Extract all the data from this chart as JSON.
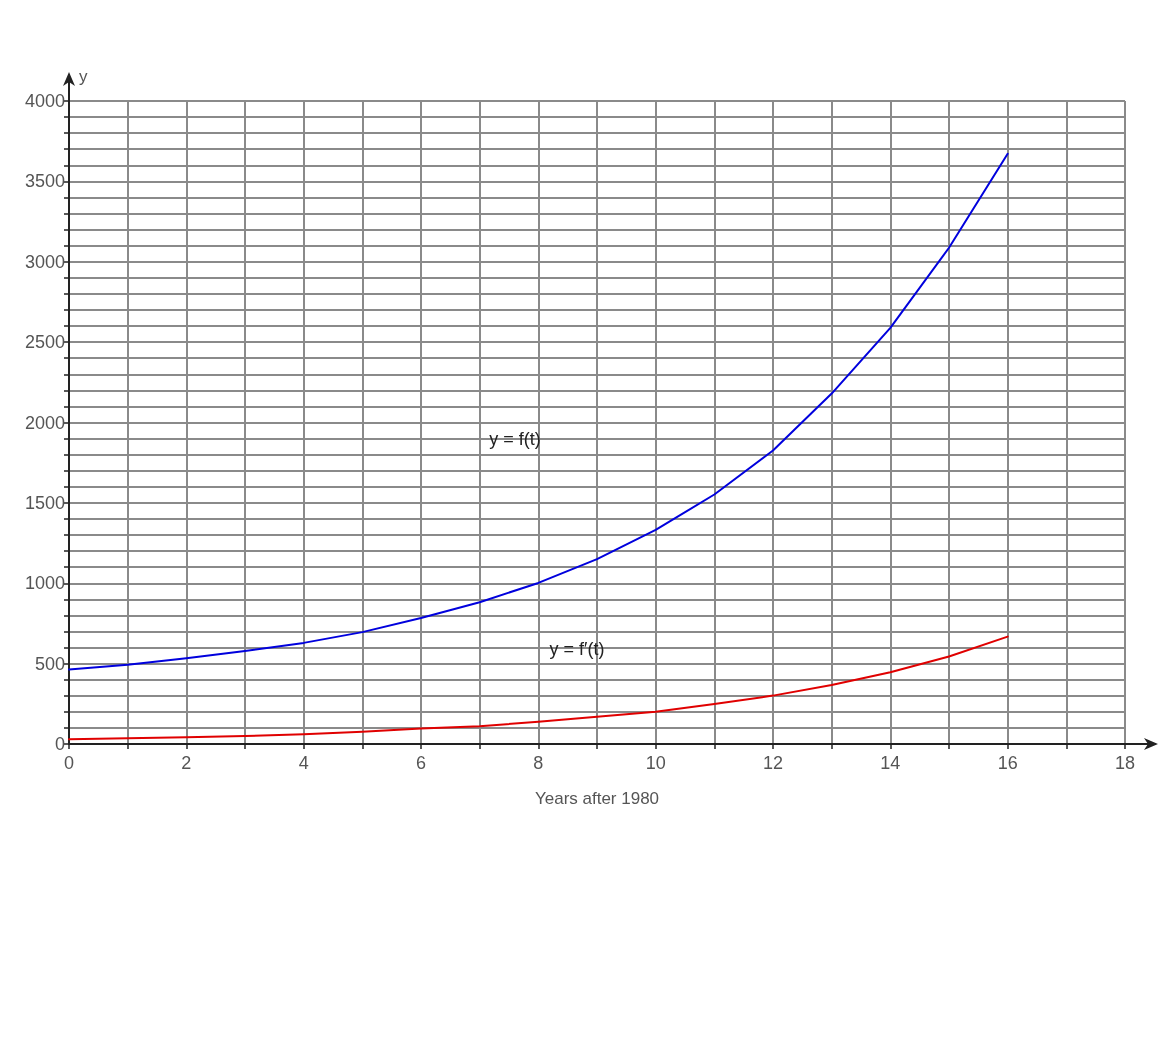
{
  "chart_data": {
    "type": "line",
    "xlabel": "Years after 1980",
    "ylabel": "y",
    "x": [
      0,
      1,
      2,
      3,
      4,
      5,
      6,
      7,
      8,
      9,
      10,
      11,
      12,
      13,
      14,
      15,
      16
    ],
    "series": [
      {
        "color": "#0000dd",
        "values": [
          464,
          493,
          533,
          578,
          629,
          696,
          784,
          882,
          1002,
          1150,
          1332,
          1552,
          1826,
          2180,
          2589,
          3087,
          3672
        ]
      },
      {
        "color": "#e00000",
        "values": [
          29,
          35,
          42,
          50,
          60,
          76,
          96,
          111,
          138,
          170,
          201,
          249,
          301,
          367,
          446,
          544,
          668
        ]
      }
    ],
    "annotations": [
      "y = f(t)",
      "y = f′(t)"
    ],
    "xlim": [
      0,
      18
    ],
    "xticks": [
      0,
      {
        "value": 1,
        "label": null
      },
      2,
      {
        "value": 3,
        "label": null
      },
      4,
      {
        "value": 5,
        "label": null
      },
      6,
      {
        "value": 7,
        "label": null
      },
      8,
      {
        "value": 9,
        "label": null
      },
      10,
      {
        "value": 11,
        "label": null
      },
      12,
      {
        "value": 13,
        "label": null
      },
      14,
      {
        "value": 15,
        "label": null
      },
      16,
      {
        "value": 17,
        "label": null
      },
      18
    ],
    "ylim": [
      0,
      4000
    ],
    "yticks": [
      0,
      {
        "value": 100,
        "label": null
      },
      {
        "value": 200,
        "label": null
      },
      {
        "value": 300,
        "label": null
      },
      {
        "value": 400,
        "label": null
      },
      500,
      {
        "value": 600,
        "label": null
      },
      {
        "value": 700,
        "label": null
      },
      {
        "value": 800,
        "label": null
      },
      {
        "value": 900,
        "label": null
      },
      1000,
      {
        "value": 1100,
        "label": null
      },
      {
        "value": 1200,
        "label": null
      },
      {
        "value": 1300,
        "label": null
      },
      {
        "value": 1400,
        "label": null
      },
      1500,
      {
        "value": 1600,
        "label": null
      },
      {
        "value": 1700,
        "label": null
      },
      {
        "value": 1800,
        "label": null
      },
      {
        "value": 1900,
        "label": null
      },
      2000,
      {
        "value": 2100,
        "label": null
      },
      {
        "value": 2200,
        "label": null
      },
      {
        "value": 2300,
        "label": null
      },
      {
        "value": 2400,
        "label": null
      },
      2500,
      {
        "value": 2600,
        "label": null
      },
      {
        "value": 2700,
        "label": null
      },
      {
        "value": 2800,
        "label": null
      },
      {
        "value": 2900,
        "label": null
      },
      3000,
      {
        "value": 3100,
        "label": null
      },
      {
        "value": 3200,
        "label": null
      },
      {
        "value": 3300,
        "label": null
      },
      {
        "value": 3400,
        "label": null
      },
      3500,
      {
        "value": 3600,
        "label": null
      },
      {
        "value": 3700,
        "label": null
      },
      {
        "value": 3800,
        "label": null
      },
      {
        "value": 3900,
        "label": null
      },
      4000
    ],
    "grid": true,
    "marker": "none"
  }
}
